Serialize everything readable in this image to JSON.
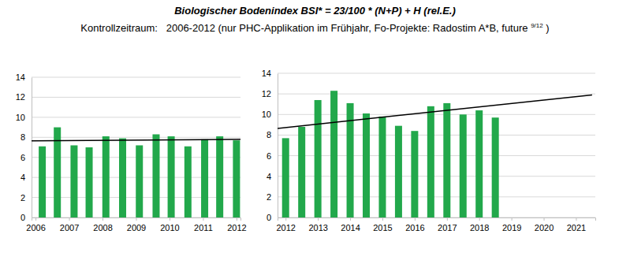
{
  "header": {
    "title": "Biologischer Bodenindex BSI* = 23/100 * (N+P) + H  (rel.E.)",
    "subtitle": [
      "Kontrollzeitraum:   2006-2012 (nur PHC-Applikation im Frühjahr, Fo-Projekte: Radostim A*B, future ",
      "9/12",
      " )"
    ]
  },
  "chart_data": [
    {
      "type": "bar",
      "xlim": [
        2005.88,
        2012.12
      ],
      "xticks": [
        2006,
        2007,
        2008,
        2009,
        2010,
        2011,
        2012
      ],
      "ylim": [
        0,
        14
      ],
      "yticks": [
        0,
        2,
        4,
        6,
        8,
        10,
        12,
        14
      ],
      "grid": true,
      "series": [
        {
          "type": "bar",
          "color": "#22a84b",
          "x": [
            2006.2,
            2006.65,
            2007.15,
            2007.6,
            2008.1,
            2008.6,
            2009.1,
            2009.6,
            2010.05,
            2010.55,
            2011.05,
            2011.5,
            2012.0
          ],
          "values": [
            7.1,
            9.0,
            7.2,
            7.0,
            8.1,
            7.9,
            7.2,
            8.3,
            8.1,
            7.1,
            7.8,
            8.1,
            7.7
          ]
        },
        {
          "type": "line",
          "color": "#000000",
          "x": [
            2005.88,
            2012.12
          ],
          "values": [
            7.65,
            7.8
          ]
        }
      ]
    },
    {
      "type": "bar",
      "xlim": [
        2011.75,
        2021.6
      ],
      "xticks": [
        2012,
        2013,
        2014,
        2015,
        2016,
        2017,
        2018,
        2019,
        2020,
        2021
      ],
      "ylim": [
        0,
        14
      ],
      "yticks": [
        0,
        2,
        4,
        6,
        8,
        10,
        12,
        14
      ],
      "grid": true,
      "series": [
        {
          "type": "bar",
          "color": "#22a84b",
          "x": [
            2012.0,
            2012.5,
            2013.0,
            2013.5,
            2014.0,
            2014.5,
            2015.0,
            2015.5,
            2016.0,
            2016.5,
            2017.0,
            2017.5,
            2018.0,
            2018.5
          ],
          "values": [
            7.7,
            8.8,
            11.4,
            12.3,
            11.1,
            10.1,
            9.8,
            8.9,
            8.4,
            10.8,
            11.1,
            10.0,
            10.4,
            9.7
          ]
        },
        {
          "type": "line",
          "color": "#000000",
          "x": [
            2011.75,
            2021.5
          ],
          "values": [
            8.65,
            11.9
          ]
        }
      ]
    }
  ]
}
